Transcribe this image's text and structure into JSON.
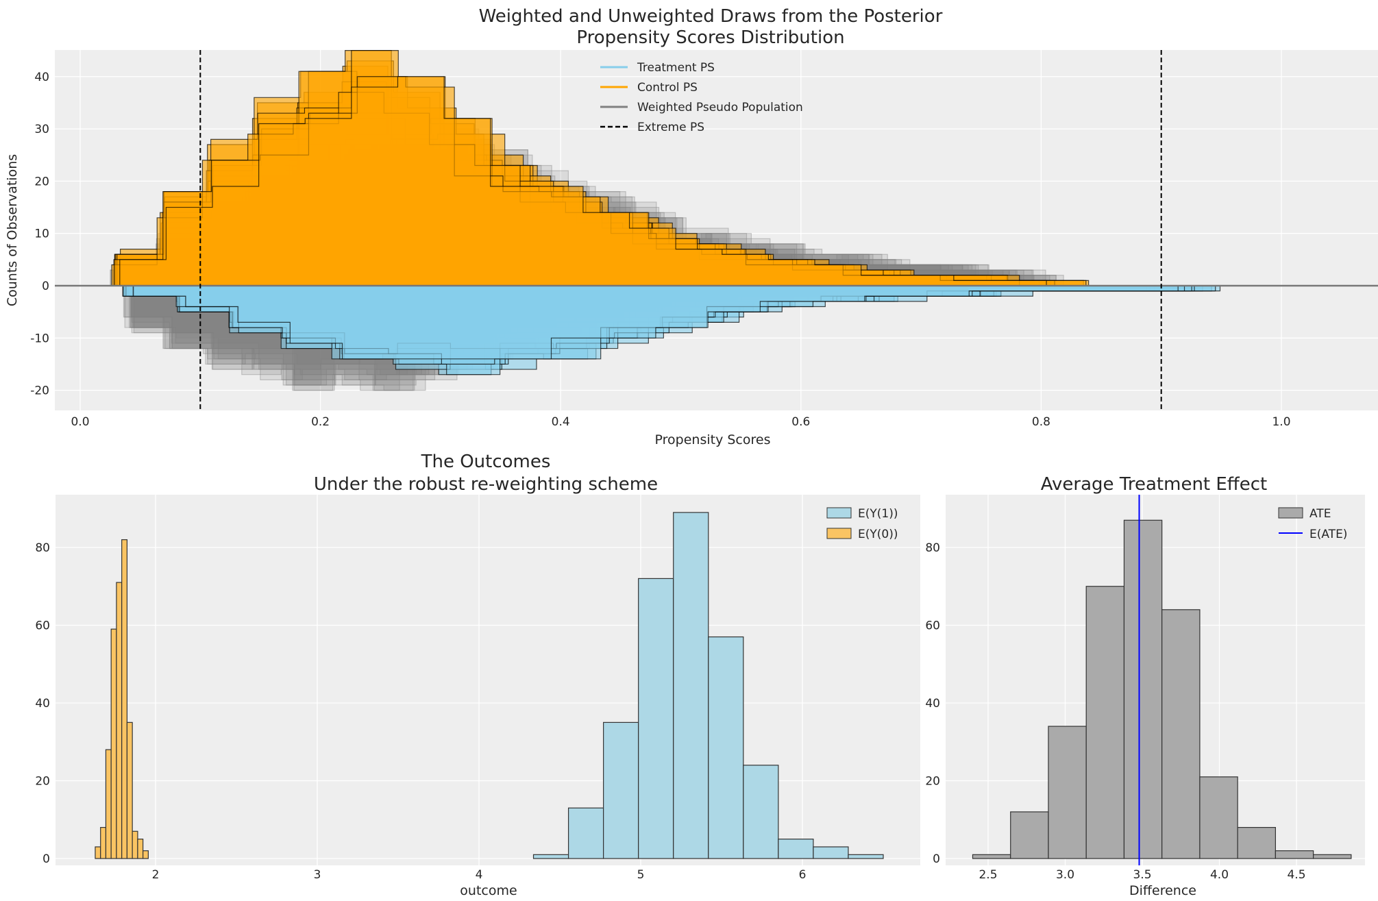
{
  "chart_data": [
    {
      "type": "bar",
      "title_line1": "Weighted and Unweighted Draws from the Posterior",
      "title_line2": "Propensity Scores Distribution",
      "xlabel": "Propensity Scores",
      "ylabel": "Counts of Observations",
      "xlim": [
        -0.021,
        1.08
      ],
      "ylim": [
        -23.9,
        45.1
      ],
      "xticks": [
        "0.0",
        "0.2",
        "0.4",
        "0.6",
        "0.8",
        "1.0"
      ],
      "yticks": [
        "-20",
        "-10",
        "0",
        "10",
        "20",
        "30",
        "40"
      ],
      "grid": true,
      "legend_position": "top-center",
      "legend": [
        "Treatment PS",
        "Control PS",
        "Weighted Pseudo Population",
        "Extreme PS"
      ],
      "extreme_ps_lines": [
        0.1,
        0.9
      ],
      "colors": {
        "treatment": "#87ceeb",
        "control": "#ffa500",
        "weighted": "#808080",
        "extreme": "#000000"
      },
      "series": [
        {
          "name": "Control PS",
          "sign": "positive",
          "approx_profile": [
            [
              0.03,
              1
            ],
            [
              0.06,
              8
            ],
            [
              0.1,
              18
            ],
            [
              0.15,
              28
            ],
            [
              0.2,
              35
            ],
            [
              0.24,
              38
            ],
            [
              0.28,
              34
            ],
            [
              0.33,
              26
            ],
            [
              0.4,
              16
            ],
            [
              0.5,
              8
            ],
            [
              0.6,
              4
            ],
            [
              0.7,
              2
            ],
            [
              0.8,
              1
            ],
            [
              0.84,
              0.5
            ]
          ]
        },
        {
          "name": "Treatment PS",
          "sign": "negative",
          "approx_profile": [
            [
              0.04,
              -1
            ],
            [
              0.1,
              -4
            ],
            [
              0.15,
              -8
            ],
            [
              0.2,
              -11
            ],
            [
              0.28,
              -14
            ],
            [
              0.33,
              -15
            ],
            [
              0.4,
              -12
            ],
            [
              0.5,
              -7
            ],
            [
              0.6,
              -3
            ],
            [
              0.7,
              -2
            ],
            [
              0.8,
              -1
            ],
            [
              0.95,
              -0.5
            ]
          ]
        },
        {
          "name": "Weighted Pseudo Population",
          "sign": "both",
          "approx_profile_control": [
            [
              0.03,
              1
            ],
            [
              0.1,
              12
            ],
            [
              0.2,
              24
            ],
            [
              0.3,
              27
            ],
            [
              0.4,
              18
            ],
            [
              0.5,
              10
            ],
            [
              0.6,
              6
            ],
            [
              0.7,
              4
            ],
            [
              0.8,
              2
            ],
            [
              0.82,
              1
            ]
          ],
          "approx_profile_treatment": [
            [
              0.04,
              -5
            ],
            [
              0.1,
              -12
            ],
            [
              0.2,
              -17
            ],
            [
              0.26,
              -17
            ],
            [
              0.33,
              -13
            ],
            [
              0.4,
              -8
            ],
            [
              0.5,
              -4
            ],
            [
              0.6,
              -2
            ],
            [
              0.7,
              -1
            ],
            [
              0.75,
              -0.5
            ]
          ]
        }
      ]
    },
    {
      "type": "bar",
      "title_line1": "The Outcomes",
      "title_line2": "Under the robust re-weighting scheme",
      "xlabel": "outcome",
      "xlim": [
        1.33,
        6.66
      ],
      "ylim": [
        0,
        93.5
      ],
      "xticks": [
        "2",
        "3",
        "4",
        "5",
        "6"
      ],
      "yticks": [
        "0",
        "20",
        "40",
        "60",
        "80"
      ],
      "grid": true,
      "legend_position": "top-right",
      "series": [
        {
          "name": "E(Y(1))",
          "color": "#add8e6",
          "bin_start": 4.337,
          "bin_width": 0.2163,
          "values": [
            1,
            13,
            35,
            72,
            89,
            57,
            24,
            5,
            3,
            1
          ]
        },
        {
          "name": "E(Y(0))",
          "color": "#ffa500",
          "bin_start": 1.627,
          "bin_width": 0.0328,
          "values": [
            3,
            8,
            28,
            59,
            71,
            82,
            35,
            7,
            5,
            2
          ]
        }
      ]
    },
    {
      "type": "bar",
      "title": "Average Treatment Effect",
      "xlabel": "Difference",
      "xlim": [
        2.2,
        4.94
      ],
      "ylim": [
        0,
        93.5
      ],
      "xticks": [
        "2.5",
        "3.0",
        "3.5",
        "4.0",
        "4.5"
      ],
      "yticks": [
        "0",
        "20",
        "40",
        "60",
        "80"
      ],
      "grid": true,
      "legend_position": "top-right",
      "series": [
        {
          "name": "ATE",
          "color": "#808080",
          "bin_start": 2.4,
          "bin_width": 0.2455,
          "values": [
            1,
            12,
            34,
            70,
            87,
            64,
            21,
            8,
            2,
            1
          ]
        }
      ],
      "mean_line": {
        "name": "E(ATE)",
        "value": 3.48,
        "color": "#0000ff"
      }
    }
  ]
}
